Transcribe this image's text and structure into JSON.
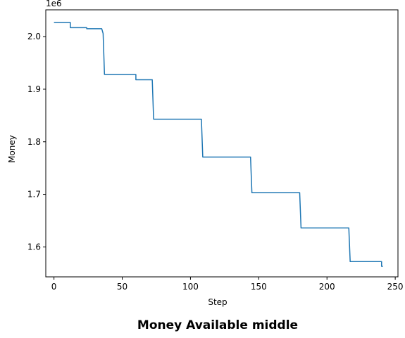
{
  "chart_data": {
    "type": "line",
    "title": "Money Available middle",
    "xlabel": "Step",
    "ylabel": "Money",
    "y_offset_label": "1e6",
    "xlim": [
      -6,
      252
    ],
    "ylim": [
      1.543,
      2.051
    ],
    "x_ticks": [
      0,
      50,
      100,
      150,
      200,
      250
    ],
    "x_tick_labels": [
      "0",
      "50",
      "100",
      "150",
      "200",
      "250"
    ],
    "y_ticks": [
      1.6,
      1.7,
      1.8,
      1.9,
      2.0
    ],
    "y_tick_labels": [
      "1.6",
      "1.7",
      "1.8",
      "1.9",
      "2.0"
    ],
    "grid": false,
    "series": [
      {
        "color": "#1f77b4",
        "x": [
          0,
          12,
          12,
          24,
          24,
          35,
          36,
          37,
          60,
          60,
          72,
          73,
          108,
          109,
          144,
          145,
          180,
          181,
          216,
          217,
          240,
          240,
          241
        ],
        "y": [
          2.027,
          2.027,
          2.017,
          2.017,
          2.015,
          2.015,
          2.006,
          1.928,
          1.928,
          1.918,
          1.918,
          1.843,
          1.843,
          1.771,
          1.771,
          1.703,
          1.703,
          1.636,
          1.636,
          1.572,
          1.572,
          1.563,
          1.563
        ]
      }
    ]
  }
}
